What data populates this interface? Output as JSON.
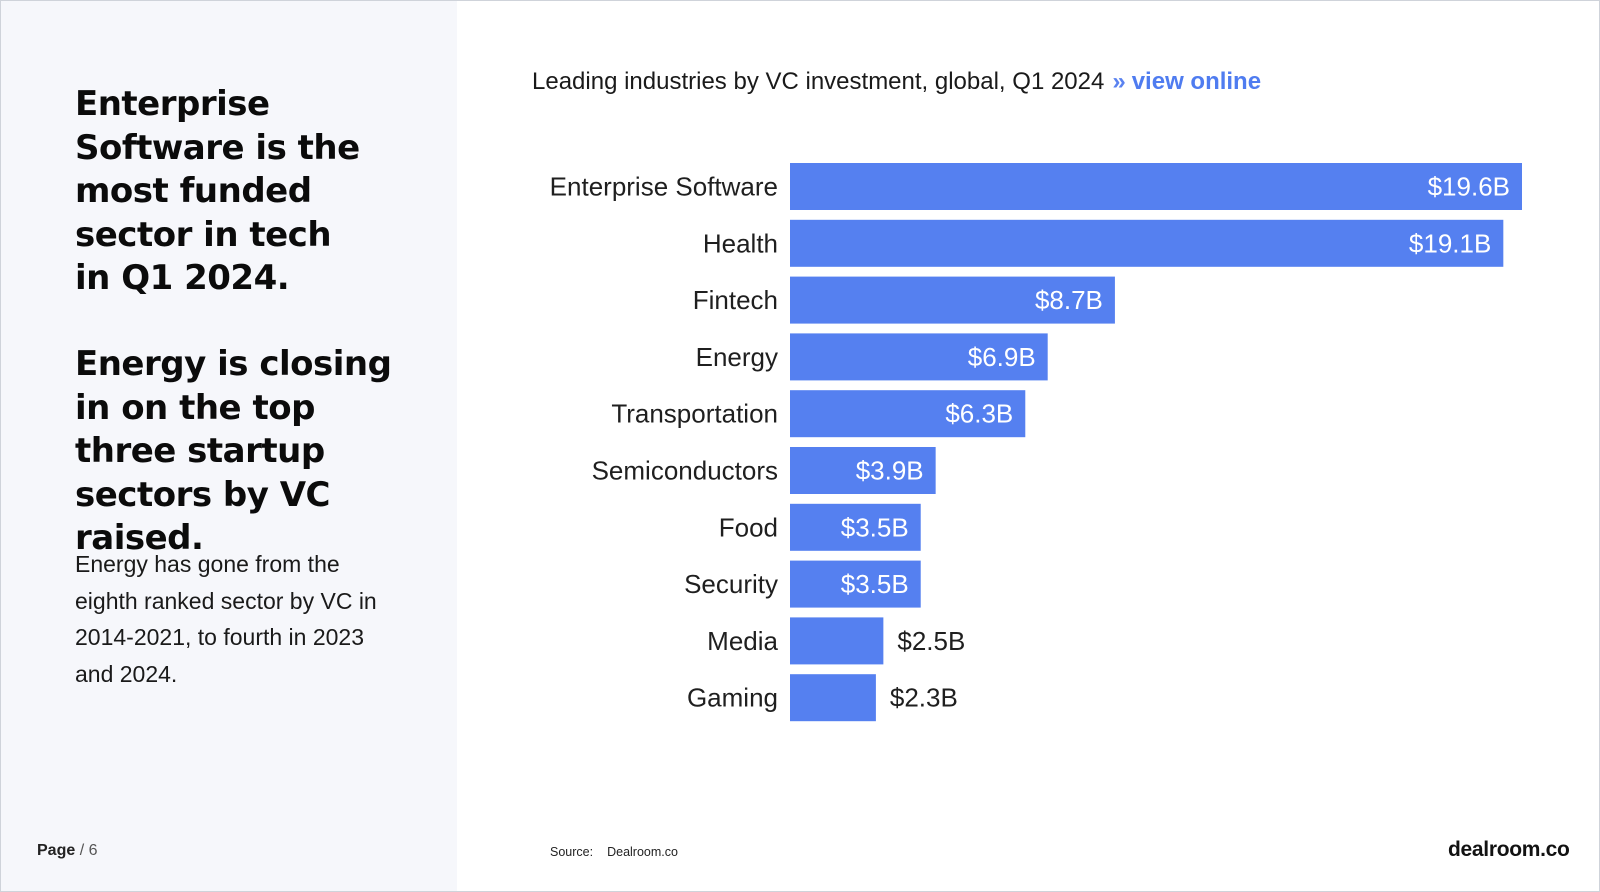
{
  "left_panel": {
    "headline_1": "Enterprise Software is the most funded sector in tech in Q1 2024.",
    "headline_2": "Energy is closing in on the top three startup sectors by VC raised.",
    "body": "Energy has gone from the eighth ranked sector by VC in 2014-2021, to fourth in 2023 and 2024."
  },
  "footer": {
    "page_label": "Page",
    "page_number": "/ 6",
    "source_label": "Source:",
    "source_value": "Dealroom.co",
    "brand": "dealroom.co"
  },
  "colors": {
    "bar": "#5580f0",
    "link": "#4f7cf0",
    "left_bg": "#f6f7fb"
  },
  "chart_data": {
    "type": "bar",
    "orientation": "horizontal",
    "title": "Leading industries by VC investment, global, Q1 2024",
    "title_separator": "»",
    "title_link": "view online",
    "categories": [
      "Enterprise Software",
      "Health",
      "Fintech",
      "Energy",
      "Transportation",
      "Semiconductors",
      "Food",
      "Security",
      "Media",
      "Gaming"
    ],
    "values": [
      19.6,
      19.1,
      8.7,
      6.9,
      6.3,
      3.9,
      3.5,
      3.5,
      2.5,
      2.3
    ],
    "value_labels": [
      "$19.6B",
      "$19.1B",
      "$8.7B",
      "$6.9B",
      "$6.3B",
      "$3.9B",
      "$3.5B",
      "$3.5B",
      "$2.5B",
      "$2.3B"
    ],
    "unit": "USD billions",
    "xlim": [
      0,
      19.6
    ],
    "grid": false,
    "legend": "none"
  }
}
